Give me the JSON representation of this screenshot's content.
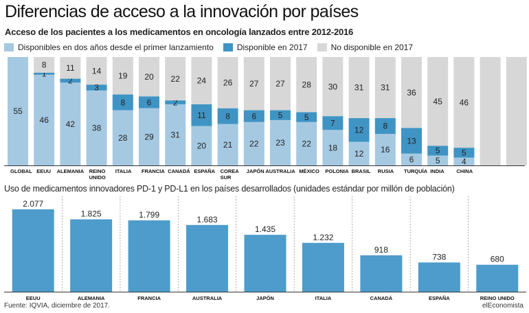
{
  "header": {
    "title": "Diferencias de acceso a la innovación por países",
    "subtitle": "Acceso de los pacientes a los medicamentos en oncología lanzados entre 2012-2016",
    "section2_title": "Uso de medicamentos innovadores PD-1 y PD-L1 en los países desarrollados (unidades estándar por millón de población)"
  },
  "footer": {
    "source": "Fuente: IQVIA, diciembre de 2017.",
    "brand": "elEconomista"
  },
  "colors": {
    "light_blue": "#a6c9e2",
    "mid_blue": "#3f94c4",
    "gray": "#d7d7d7",
    "bar_blue": "#4d9ccc",
    "text": "#222222"
  },
  "chart_data": [
    {
      "type": "bar",
      "stacked": true,
      "categories": [
        "GLOBAL",
        "EEUU",
        "ALEMANIA",
        "REINO UNIDO",
        "ITALIA",
        "FRANCIA",
        "CANADÁ",
        "ESPAÑA",
        "COREA SUR",
        "JAPÓN",
        "AUSTRALIA",
        "MÉXICO",
        "POLONIA",
        "BRASIL",
        "RUSIA",
        "TURQUÍA",
        "INDIA",
        "CHINA",
        "",
        ""
      ],
      "category_lines": [
        [
          "GLOBAL"
        ],
        [
          "EEUU"
        ],
        [
          "ALEMANIA"
        ],
        [
          "REINO",
          "UNIDO"
        ],
        [
          "ITALIA"
        ],
        [
          "FRANCIA"
        ],
        [
          "CANADÁ"
        ],
        [
          "ESPAÑA"
        ],
        [
          "COREA",
          "SUR"
        ],
        [
          "JAPÓN"
        ],
        [
          "AUSTRALIA"
        ],
        [
          "MÉXICO"
        ],
        [
          "POLONIA"
        ],
        [
          "BRASIL"
        ],
        [
          "RUSIA"
        ],
        [
          "TURQUÍA"
        ],
        [
          "INDIA"
        ],
        [
          "CHINA"
        ],
        [
          ""
        ],
        [
          ""
        ]
      ],
      "series": [
        {
          "name": "Disponibles en dos años desde el primer lanzamiento",
          "color": "#a6c9e2",
          "values": [
            55,
            46,
            42,
            38,
            28,
            29,
            31,
            20,
            21,
            22,
            23,
            22,
            18,
            12,
            16,
            6,
            5,
            4,
            null,
            null
          ]
        },
        {
          "name": "Disponible en 2017",
          "color": "#3f94c4",
          "values": [
            null,
            1,
            2,
            3,
            8,
            6,
            2,
            11,
            8,
            6,
            5,
            5,
            7,
            12,
            8,
            13,
            5,
            5,
            null,
            null
          ]
        },
        {
          "name": "No disponible en 2017",
          "color": "#d7d7d7",
          "values": [
            null,
            8,
            11,
            14,
            19,
            20,
            22,
            24,
            26,
            27,
            27,
            28,
            30,
            31,
            31,
            36,
            45,
            46,
            null,
            null
          ]
        }
      ],
      "ylim": [
        0,
        55
      ],
      "legend_position": "top-left"
    },
    {
      "type": "bar",
      "categories": [
        "EEUU",
        "ALEMANIA",
        "FRANCIA",
        "AUSTRALIA",
        "JAPÓN",
        "ITALIA",
        "CANADÁ",
        "ESPAÑA",
        "REINO UNIDO"
      ],
      "values": [
        2077,
        1825,
        1799,
        1683,
        1435,
        1232,
        918,
        738,
        680
      ],
      "value_labels": [
        "2.077",
        "1.825",
        "1.799",
        "1.683",
        "1.435",
        "1.232",
        "918",
        "738",
        "680"
      ],
      "color": "#4d9ccc",
      "ylim": [
        0,
        2300
      ]
    }
  ]
}
